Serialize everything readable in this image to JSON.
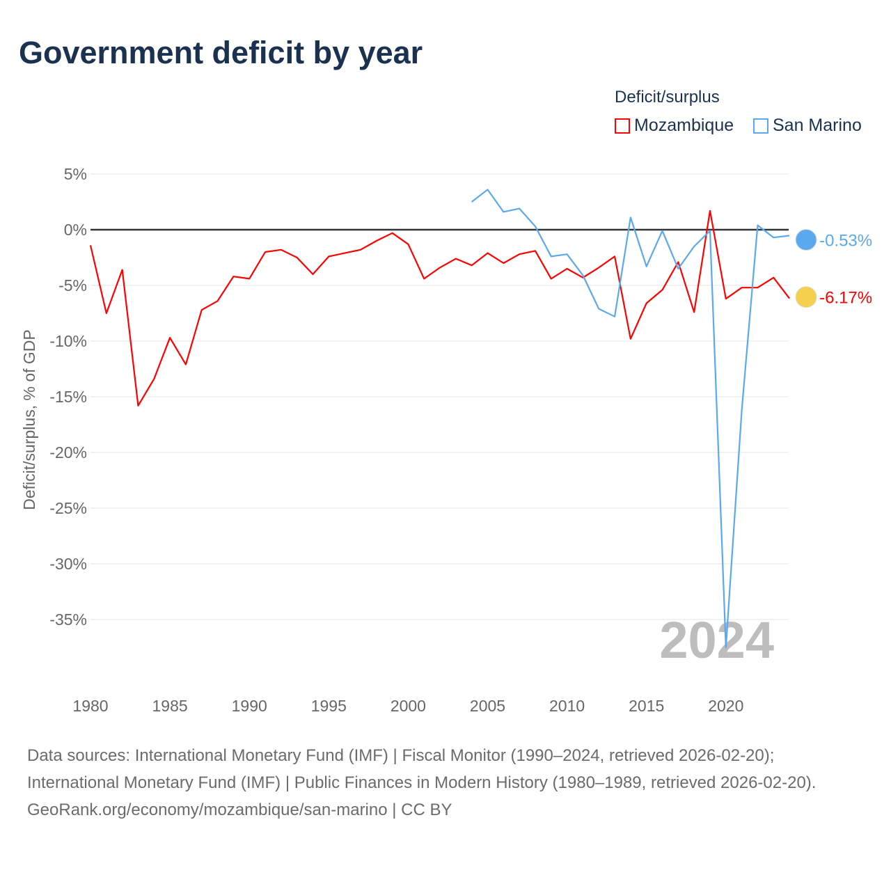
{
  "title": "Government deficit by year",
  "legend": {
    "title": "Deficit/surplus",
    "items": [
      "Mozambique",
      "San Marino"
    ]
  },
  "chart_data": {
    "type": "line",
    "title": "Government deficit by year",
    "ylabel": "Deficit/surplus, % of GDP",
    "xlabel": "",
    "xlim": [
      1980,
      2024
    ],
    "ylim": [
      -40,
      5
    ],
    "yticks": [
      5,
      0,
      -5,
      -10,
      -15,
      -20,
      -25,
      -30,
      -35
    ],
    "ytick_labels": [
      "5%",
      "0%",
      "-5%",
      "-10%",
      "-15%",
      "-20%",
      "-25%",
      "-30%",
      "-35%"
    ],
    "xticks": [
      1980,
      1985,
      1990,
      1995,
      2000,
      2005,
      2010,
      2015,
      2020
    ],
    "xtick_labels": [
      "1980",
      "1985",
      "1990",
      "1995",
      "2000",
      "2005",
      "2010",
      "2015",
      "2020"
    ],
    "year_watermark": "2024",
    "series": [
      {
        "name": "Mozambique",
        "color": "#ff0000",
        "end_label": "-6.17%",
        "x_start": 1980,
        "values": [
          -1.4,
          -7.5,
          -3.6,
          -15.8,
          -13.4,
          -9.7,
          -12.1,
          -7.2,
          -6.4,
          -4.2,
          -4.4,
          -2.0,
          -1.8,
          -2.5,
          -4.0,
          -2.4,
          -2.1,
          -1.8,
          -1.0,
          -0.3,
          -1.3,
          -4.4,
          -3.4,
          -2.6,
          -3.2,
          -2.1,
          -3.0,
          -2.2,
          -1.9,
          -4.4,
          -3.5,
          -4.3,
          -3.4,
          -2.4,
          -9.8,
          -6.6,
          -5.4,
          -2.9,
          -7.4,
          1.7,
          -6.2,
          -5.2,
          -5.2,
          -4.3,
          -6.17
        ]
      },
      {
        "name": "San Marino",
        "color": "#5aa9ee",
        "end_label": "-0.53%",
        "x_start": 2004,
        "values": [
          2.5,
          3.6,
          1.6,
          1.9,
          0.3,
          -2.4,
          -2.2,
          -4.1,
          -7.1,
          -7.8,
          1.1,
          -3.3,
          -0.1,
          -3.5,
          -1.5,
          -0.1,
          -37.5,
          -16.2,
          0.4,
          -0.7,
          -0.53
        ]
      }
    ]
  },
  "footer": {
    "sources": "Data sources: International Monetary Fund (IMF) | Fiscal Monitor (1990–2024, retrieved 2026-02-20); International Monetary Fund (IMF) | Public Finances in Modern History (1980–1989, retrieved 2026-02-20).",
    "credit": "GeoRank.org/economy/mozambique/san-marino | CC BY"
  }
}
